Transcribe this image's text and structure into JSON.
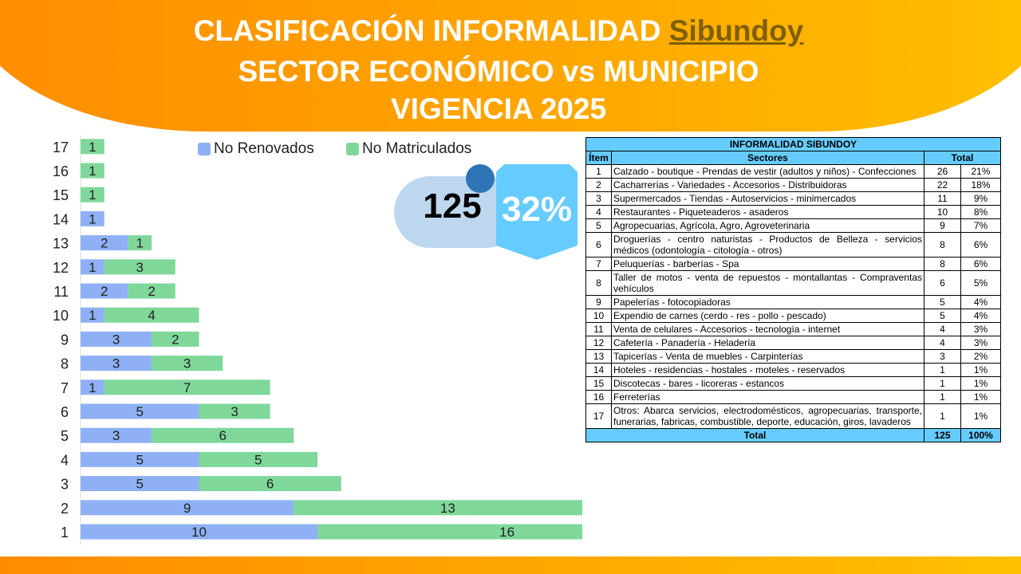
{
  "title": {
    "line1_prefix": "CLASIFICACIÓN INFORMALIDAD",
    "municipality": "Sibundoy",
    "line2": "SECTOR ECONÓMICO vs MUNICIPIO",
    "line3": "VIGENCIA 2025"
  },
  "colors": {
    "no_renovados": "#8fb0f5",
    "no_matriculados": "#7fd89a",
    "accent_orange": "#ffa400",
    "table_header": "#66ccff"
  },
  "kpi": {
    "total": "125",
    "percent": "32%"
  },
  "chart_data": {
    "type": "bar",
    "orientation": "horizontal",
    "stacked": true,
    "categories": [
      "1",
      "2",
      "3",
      "4",
      "5",
      "6",
      "7",
      "8",
      "9",
      "10",
      "11",
      "12",
      "13",
      "14",
      "15",
      "16",
      "17"
    ],
    "series": [
      {
        "name": "No Renovados",
        "values": [
          10,
          9,
          5,
          5,
          3,
          5,
          1,
          3,
          3,
          1,
          2,
          1,
          2,
          1,
          0,
          0,
          0
        ]
      },
      {
        "name": "No Matriculados",
        "values": [
          16,
          13,
          6,
          5,
          6,
          3,
          7,
          3,
          2,
          4,
          2,
          3,
          1,
          0,
          1,
          1,
          1
        ]
      }
    ],
    "xlim": [
      0,
      27
    ],
    "legend": "top"
  },
  "table": {
    "title": "INFORMALIDAD SIBUNDOY",
    "headers": {
      "item": "Ítem",
      "sectores": "Sectores",
      "total": "Total"
    },
    "rows": [
      {
        "item": "1",
        "sector": "Calzado - boutique - Prendas de vestir (adultos y niños) - Confecciones",
        "total": "26",
        "pct": "21%"
      },
      {
        "item": "2",
        "sector": "Cacharrerías - Variedades - Accesorios - Distribuidoras",
        "total": "22",
        "pct": "18%"
      },
      {
        "item": "3",
        "sector": "Supermercados - Tiendas - Autoservicios - minimercados",
        "total": "11",
        "pct": "9%"
      },
      {
        "item": "4",
        "sector": "Restaurantes - Piqueteaderos - asaderos",
        "total": "10",
        "pct": "8%"
      },
      {
        "item": "5",
        "sector": "Agropecuarias, Agrícola, Agro, Agroveterinaria",
        "total": "9",
        "pct": "7%"
      },
      {
        "item": "6",
        "sector": "Droguerías - centro naturistas - Productos de Belleza - servicios médicos (odontología - citología - otros)",
        "total": "8",
        "pct": "6%"
      },
      {
        "item": "7",
        "sector": "Peluquerías - barberías - Spa",
        "total": "8",
        "pct": "6%"
      },
      {
        "item": "8",
        "sector": "Taller de motos - venta de repuestos - montallantas - Compraventas vehículos",
        "total": "6",
        "pct": "5%"
      },
      {
        "item": "9",
        "sector": "Papelerías - fotocopiadoras",
        "total": "5",
        "pct": "4%"
      },
      {
        "item": "10",
        "sector": "Expendio de carnes (cerdo - res - pollo - pescado)",
        "total": "5",
        "pct": "4%"
      },
      {
        "item": "11",
        "sector": "Venta de celulares - Accesorios - tecnología - internet",
        "total": "4",
        "pct": "3%"
      },
      {
        "item": "12",
        "sector": "Cafetería - Panadería - Heladería",
        "total": "4",
        "pct": "3%"
      },
      {
        "item": "13",
        "sector": "Tapicerías - Venta de muebles - Carpinterías",
        "total": "3",
        "pct": "2%"
      },
      {
        "item": "14",
        "sector": "Hoteles - residencias - hostales - moteles - reservados",
        "total": "1",
        "pct": "1%"
      },
      {
        "item": "15",
        "sector": "Discotecas - bares - licoreras - estancos",
        "total": "1",
        "pct": "1%"
      },
      {
        "item": "16",
        "sector": "Ferreterías",
        "total": "1",
        "pct": "1%"
      },
      {
        "item": "17",
        "sector": "Otros: Abarca servicios, electrodomésticos, agropecuarias, transporte, funerarias, fabricas, combustible, deporte, educación, giros, lavaderos",
        "total": "1",
        "pct": "1%"
      }
    ],
    "footer": {
      "label": "Total",
      "total": "125",
      "pct": "100%"
    }
  }
}
